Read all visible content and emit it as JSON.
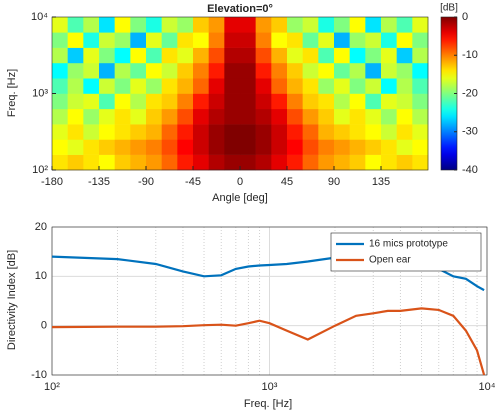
{
  "chart_data": [
    {
      "type": "heatmap",
      "title": "Elevation=0°",
      "xlabel": "Angle [deg]",
      "ylabel": "Freq. [Hz]",
      "x": [
        -172.5,
        -157.5,
        -142.5,
        -127.5,
        -112.5,
        -97.5,
        -82.5,
        -67.5,
        -52.5,
        -37.5,
        -22.5,
        -7.5,
        7.5,
        22.5,
        37.5,
        52.5,
        67.5,
        82.5,
        97.5,
        112.5,
        127.5,
        142.5,
        157.5,
        172.5
      ],
      "y": [
        126,
        200,
        316,
        501,
        794,
        1259,
        1995,
        3162,
        5012,
        7943
      ],
      "values": [
        [
          -14,
          -13,
          -14,
          -15,
          -13,
          -12,
          -11,
          -9,
          -6,
          -4,
          -2,
          -1,
          -1,
          -2,
          -4,
          -6,
          -9,
          -11,
          -12,
          -13,
          -15,
          -14,
          -13,
          -14
        ],
        [
          -15,
          -16,
          -14,
          -13,
          -12,
          -11,
          -10,
          -8,
          -5,
          -3,
          -1,
          0,
          0,
          -1,
          -3,
          -5,
          -8,
          -10,
          -11,
          -12,
          -13,
          -14,
          -16,
          -15
        ],
        [
          -16,
          -14,
          -17,
          -15,
          -14,
          -13,
          -12,
          -9,
          -6,
          -3,
          -1,
          0,
          0,
          -1,
          -3,
          -6,
          -9,
          -12,
          -13,
          -14,
          -15,
          -17,
          -14,
          -16
        ],
        [
          -18,
          -15,
          -19,
          -16,
          -14,
          -16,
          -13,
          -11,
          -8,
          -4,
          -2,
          -1,
          -1,
          -2,
          -4,
          -8,
          -11,
          -13,
          -16,
          -14,
          -16,
          -19,
          -15,
          -18
        ],
        [
          -20,
          -17,
          -16,
          -22,
          -15,
          -18,
          -14,
          -13,
          -10,
          -6,
          -3,
          -1,
          -1,
          -3,
          -6,
          -10,
          -13,
          -14,
          -18,
          -15,
          -22,
          -16,
          -17,
          -20
        ],
        [
          -22,
          -18,
          -25,
          -17,
          -20,
          -16,
          -19,
          -14,
          -12,
          -9,
          -4,
          -1,
          -1,
          -4,
          -9,
          -12,
          -14,
          -19,
          -16,
          -20,
          -17,
          -25,
          -18,
          -22
        ],
        [
          -25,
          -19,
          -17,
          -28,
          -18,
          -21,
          -15,
          -17,
          -13,
          -10,
          -6,
          -1,
          -1,
          -6,
          -10,
          -13,
          -17,
          -15,
          -21,
          -18,
          -28,
          -17,
          -19,
          -25
        ],
        [
          -18,
          -27,
          -16,
          -20,
          -25,
          -15,
          -22,
          -14,
          -16,
          -12,
          -8,
          -2,
          -2,
          -8,
          -12,
          -16,
          -14,
          -22,
          -15,
          -25,
          -20,
          -16,
          -27,
          -18
        ],
        [
          -20,
          -15,
          -24,
          -17,
          -19,
          -28,
          -16,
          -21,
          -14,
          -15,
          -10,
          -3,
          -3,
          -10,
          -15,
          -14,
          -21,
          -16,
          -28,
          -19,
          -17,
          -24,
          -15,
          -20
        ],
        [
          -16,
          -22,
          -18,
          -26,
          -15,
          -20,
          -24,
          -17,
          -19,
          -13,
          -11,
          -4,
          -4,
          -11,
          -13,
          -19,
          -17,
          -24,
          -20,
          -15,
          -26,
          -18,
          -22,
          -16
        ]
      ],
      "xlim": [
        -180,
        180
      ],
      "xticks": [
        -180,
        -135,
        -90,
        -45,
        0,
        45,
        90,
        135
      ],
      "ylim": [
        100,
        10000
      ],
      "ylog": true,
      "yticks": [
        {
          "value": 100,
          "label": "10²"
        },
        {
          "value": 1000,
          "label": "10³"
        },
        {
          "value": 10000,
          "label": "10⁴"
        }
      ],
      "colorbar": {
        "label": "[dB]",
        "lim": [
          -40,
          0
        ],
        "ticks": [
          0,
          -10,
          -20,
          -30,
          -40
        ],
        "colormap": "jet"
      }
    },
    {
      "type": "line",
      "xlabel": "Freq. [Hz]",
      "ylabel": "Directivity Index [dB]",
      "x": [
        100,
        200,
        300,
        400,
        500,
        600,
        700,
        800,
        900,
        1000,
        1200,
        1500,
        2000,
        2500,
        3000,
        3500,
        4000,
        5000,
        6000,
        7000,
        8000,
        9000,
        9700
      ],
      "series": [
        {
          "name": "16 mics prototype",
          "color": "#0072bd",
          "values": [
            14,
            13.5,
            12.5,
            11,
            10,
            10.2,
            11.5,
            12,
            12.2,
            12.3,
            12.5,
            13,
            13.8,
            14,
            13.8,
            13.5,
            13,
            12.5,
            11.5,
            10,
            9.5,
            8,
            7.2
          ]
        },
        {
          "name": "Open ear",
          "color": "#d95319",
          "values": [
            -0.3,
            -0.2,
            -0.2,
            -0.1,
            0.1,
            0.2,
            0,
            0.5,
            1,
            0.5,
            -1,
            -2.8,
            0,
            2,
            2.5,
            3,
            3,
            3.5,
            3.2,
            2,
            -1,
            -5,
            -10
          ]
        }
      ],
      "xlim": [
        100,
        10000
      ],
      "xlog": true,
      "xticks": [
        {
          "value": 100,
          "label": "10²"
        },
        {
          "value": 1000,
          "label": "10³"
        },
        {
          "value": 10000,
          "label": "10⁴"
        }
      ],
      "minor_xticks": [
        200,
        300,
        400,
        500,
        600,
        700,
        800,
        900,
        2000,
        3000,
        4000,
        5000,
        6000,
        7000,
        8000,
        9000
      ],
      "ylim": [
        -10,
        20
      ],
      "yticks": [
        -10,
        0,
        10,
        20
      ],
      "grid": true,
      "legend": "top-right"
    }
  ]
}
